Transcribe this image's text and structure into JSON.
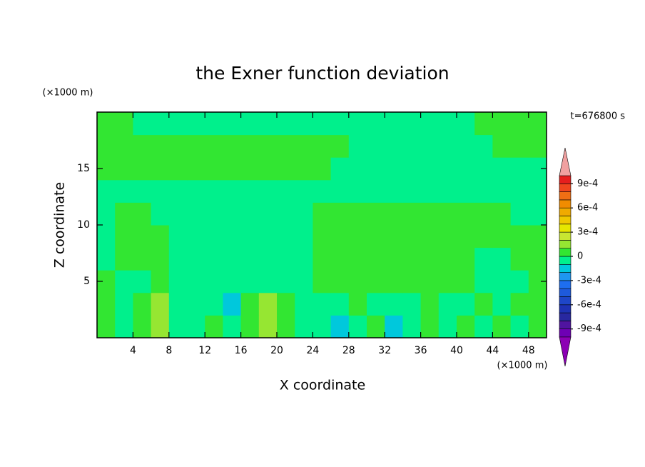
{
  "chart_data": {
    "type": "contour",
    "title": "the Exner function deviation",
    "time_label": "t=676800 s",
    "xlabel": "X coordinate",
    "ylabel": "Z coordinate",
    "x_unit_label": "(×1000 m)",
    "y_unit_label": "(×1000 m)",
    "xlim": [
      0,
      50
    ],
    "ylim": [
      0,
      20
    ],
    "xticks": [
      4,
      8,
      12,
      16,
      20,
      24,
      28,
      32,
      36,
      40,
      44,
      48
    ],
    "yticks": [
      5,
      10,
      15
    ],
    "xbins": [
      0,
      2,
      4,
      6,
      8,
      10,
      12,
      14,
      16,
      18,
      20,
      22,
      24,
      26,
      28,
      30,
      32,
      34,
      36,
      38,
      40,
      42,
      44,
      46,
      48,
      50
    ],
    "ybins": [
      0,
      2,
      4,
      6,
      8,
      10,
      12,
      14,
      16,
      18,
      20
    ],
    "z": [
      [
        5e-05,
        -5e-05,
        5e-05,
        0.00015,
        -5e-05,
        -5e-05,
        5e-05,
        -5e-05,
        5e-05,
        0.00015,
        5e-05,
        -5e-05,
        -5e-05,
        -0.00015,
        -5e-05,
        5e-05,
        -0.00015,
        -5e-05,
        5e-05,
        -5e-05,
        5e-05,
        -5e-05,
        5e-05,
        -5e-05,
        5e-05
      ],
      [
        5e-05,
        -5e-05,
        5e-05,
        0.00015,
        -5e-05,
        -5e-05,
        -5e-05,
        -0.00015,
        5e-05,
        0.00015,
        5e-05,
        -5e-05,
        -5e-05,
        -5e-05,
        5e-05,
        -5e-05,
        -5e-05,
        -5e-05,
        5e-05,
        -5e-05,
        -5e-05,
        5e-05,
        -5e-05,
        5e-05,
        5e-05
      ],
      [
        5e-05,
        -5e-05,
        -5e-05,
        5e-05,
        -5e-05,
        -5e-05,
        -5e-05,
        -5e-05,
        -5e-05,
        -5e-05,
        -5e-05,
        -5e-05,
        5e-05,
        5e-05,
        5e-05,
        5e-05,
        5e-05,
        5e-05,
        5e-05,
        5e-05,
        5e-05,
        -5e-05,
        -5e-05,
        -5e-05,
        5e-05
      ],
      [
        -5e-05,
        5e-05,
        5e-05,
        5e-05,
        -5e-05,
        -5e-05,
        -5e-05,
        -5e-05,
        -5e-05,
        -5e-05,
        -5e-05,
        -5e-05,
        5e-05,
        5e-05,
        5e-05,
        5e-05,
        5e-05,
        5e-05,
        5e-05,
        5e-05,
        5e-05,
        -5e-05,
        -5e-05,
        5e-05,
        5e-05
      ],
      [
        -5e-05,
        5e-05,
        5e-05,
        5e-05,
        -5e-05,
        -5e-05,
        -5e-05,
        -5e-05,
        -5e-05,
        -5e-05,
        -5e-05,
        -5e-05,
        5e-05,
        5e-05,
        5e-05,
        5e-05,
        5e-05,
        5e-05,
        5e-05,
        5e-05,
        5e-05,
        5e-05,
        5e-05,
        5e-05,
        5e-05
      ],
      [
        -5e-05,
        5e-05,
        5e-05,
        -5e-05,
        -5e-05,
        -5e-05,
        -5e-05,
        -5e-05,
        -5e-05,
        -5e-05,
        -5e-05,
        -5e-05,
        5e-05,
        5e-05,
        5e-05,
        5e-05,
        5e-05,
        5e-05,
        5e-05,
        5e-05,
        5e-05,
        5e-05,
        5e-05,
        -5e-05,
        -5e-05
      ],
      [
        -5e-05,
        -5e-05,
        -5e-05,
        -5e-05,
        -5e-05,
        -5e-05,
        -5e-05,
        -5e-05,
        -5e-05,
        -5e-05,
        -5e-05,
        -5e-05,
        -5e-05,
        -5e-05,
        -5e-05,
        -5e-05,
        -5e-05,
        -5e-05,
        -5e-05,
        -5e-05,
        -5e-05,
        -5e-05,
        -5e-05,
        -5e-05,
        -5e-05
      ],
      [
        5e-05,
        5e-05,
        5e-05,
        5e-05,
        5e-05,
        5e-05,
        5e-05,
        5e-05,
        5e-05,
        5e-05,
        5e-05,
        5e-05,
        5e-05,
        -5e-05,
        -5e-05,
        -5e-05,
        -5e-05,
        -5e-05,
        -5e-05,
        -5e-05,
        -5e-05,
        -5e-05,
        -5e-05,
        -5e-05,
        -5e-05
      ],
      [
        5e-05,
        5e-05,
        5e-05,
        5e-05,
        5e-05,
        5e-05,
        5e-05,
        5e-05,
        5e-05,
        5e-05,
        5e-05,
        5e-05,
        5e-05,
        5e-05,
        -5e-05,
        -5e-05,
        -5e-05,
        -5e-05,
        -5e-05,
        -5e-05,
        -5e-05,
        -5e-05,
        5e-05,
        5e-05,
        5e-05
      ],
      [
        5e-05,
        5e-05,
        -5e-05,
        -5e-05,
        -5e-05,
        -5e-05,
        -5e-05,
        -5e-05,
        -5e-05,
        -5e-05,
        -5e-05,
        -5e-05,
        -5e-05,
        -5e-05,
        -5e-05,
        -5e-05,
        -5e-05,
        -5e-05,
        -5e-05,
        -5e-05,
        -5e-05,
        5e-05,
        5e-05,
        5e-05,
        5e-05
      ]
    ],
    "levels": [
      -0.001,
      -0.0009,
      -0.0008,
      -0.0007,
      -0.0006,
      -0.0005,
      -0.0004,
      -0.0003,
      -0.0002,
      -0.0001,
      0,
      0.0001,
      0.0002,
      0.0003,
      0.0004,
      0.0005,
      0.0006,
      0.0007,
      0.0008,
      0.0009,
      0.001
    ],
    "colors": [
      "#8c00b4",
      "#6e00b4",
      "#5014a0",
      "#2828a0",
      "#1e32b4",
      "#1e46c8",
      "#1e5adc",
      "#1e6ef0",
      "#1e96f0",
      "#00c8dc",
      "#00f08c",
      "#32e632",
      "#96e632",
      "#c8e632",
      "#e6e600",
      "#f0c800",
      "#f0aa00",
      "#f08c00",
      "#f06e14",
      "#f0461e",
      "#e61e1e",
      "#f0a0a0"
    ],
    "colorbar_ticks": [
      {
        "value": 0.0009,
        "label": "9e-4"
      },
      {
        "value": 0.0006,
        "label": "6e-4"
      },
      {
        "value": 0.0003,
        "label": "3e-4"
      },
      0,
      {
        "value": -0.0003,
        "label": "-3e-4"
      },
      {
        "value": -0.0006,
        "label": "-6e-4"
      },
      {
        "value": -0.0009,
        "label": "-9e-4"
      }
    ]
  }
}
